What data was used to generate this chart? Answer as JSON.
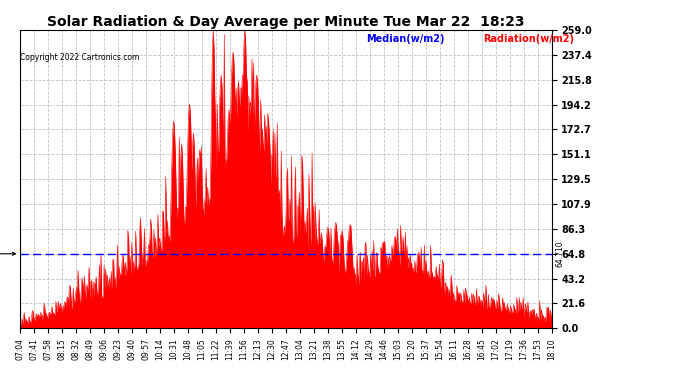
{
  "title": "Solar Radiation & Day Average per Minute Tue Mar 22  18:23",
  "copyright": "Copyright 2022 Cartronics.com",
  "legend_median": "Median(w/m2)",
  "legend_radiation": "Radiation(w/m2)",
  "median_value": 64.71,
  "median_label": "64.710",
  "y_max": 259.0,
  "y_min": 0.0,
  "yticks": [
    0.0,
    21.6,
    43.2,
    64.8,
    86.3,
    107.9,
    129.5,
    151.1,
    172.7,
    194.2,
    215.8,
    237.4,
    259.0
  ],
  "background_color": "#ffffff",
  "grid_color": "#bbbbbb",
  "radiation_color": "#ff0000",
  "median_color": "#0000ff",
  "title_color": "#000000",
  "copyright_color": "#000000",
  "xtick_labels": [
    "07:04",
    "07:41",
    "07:58",
    "08:15",
    "08:32",
    "08:49",
    "09:06",
    "09:23",
    "09:40",
    "09:57",
    "10:14",
    "10:31",
    "10:48",
    "11:05",
    "11:22",
    "11:39",
    "11:56",
    "12:13",
    "12:30",
    "12:47",
    "13:04",
    "13:21",
    "13:38",
    "13:55",
    "14:12",
    "14:29",
    "14:46",
    "15:03",
    "15:20",
    "15:37",
    "15:54",
    "16:11",
    "16:28",
    "16:45",
    "17:02",
    "17:19",
    "17:36",
    "17:53",
    "18:10"
  ]
}
